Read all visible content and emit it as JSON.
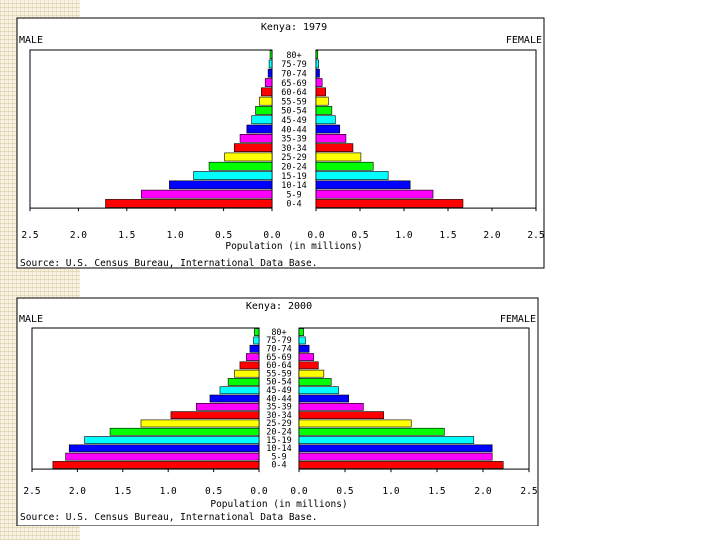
{
  "colors": {
    "page_background": "#ffffff",
    "side_strip": "#f7f2e2",
    "bar_palette": [
      "#ff0000",
      "#ff00ff",
      "#0000ff",
      "#00ffff",
      "#00ff00",
      "#ffff00"
    ]
  },
  "chart_data": [
    {
      "type": "bar",
      "orientation": "population-pyramid",
      "title": "Kenya: 1979",
      "left_label": "MALE",
      "right_label": "FEMALE",
      "xlabel": "Population (in millions)",
      "source": "Source: U.S. Census Bureau, International Data Base.",
      "xlim": [
        0,
        2.5
      ],
      "x_ticks": [
        "2.5",
        "2.0",
        "1.5",
        "1.0",
        "0.5",
        "0.0",
        "0.0",
        "0.5",
        "1.0",
        "1.5",
        "2.0",
        "2.5"
      ],
      "grid": false,
      "categories": [
        "0-4",
        "5-9",
        "10-14",
        "15-19",
        "20-24",
        "25-29",
        "30-34",
        "35-39",
        "40-44",
        "45-49",
        "50-54",
        "55-59",
        "60-64",
        "65-69",
        "70-74",
        "75-79",
        "80+"
      ],
      "series": [
        {
          "name": "MALE",
          "values": [
            1.72,
            1.35,
            1.06,
            0.81,
            0.65,
            0.49,
            0.39,
            0.33,
            0.26,
            0.21,
            0.17,
            0.13,
            0.11,
            0.07,
            0.04,
            0.03,
            0.02
          ]
        },
        {
          "name": "FEMALE",
          "values": [
            1.67,
            1.33,
            1.07,
            0.82,
            0.65,
            0.51,
            0.42,
            0.34,
            0.27,
            0.22,
            0.18,
            0.14,
            0.11,
            0.07,
            0.04,
            0.03,
            0.02
          ]
        }
      ]
    },
    {
      "type": "bar",
      "orientation": "population-pyramid",
      "title": "Kenya: 2000",
      "left_label": "MALE",
      "right_label": "FEMALE",
      "xlabel": "Population (in millions)",
      "source": "Source: U.S. Census Bureau, International Data Base.",
      "xlim": [
        0,
        2.5
      ],
      "x_ticks": [
        "2.5",
        "2.0",
        "1.5",
        "1.0",
        "0.5",
        "0.0",
        "0.0",
        "0.5",
        "1.0",
        "1.5",
        "2.0",
        "2.5"
      ],
      "grid": false,
      "categories": [
        "0-4",
        "5-9",
        "10-14",
        "15-19",
        "20-24",
        "25-29",
        "30-34",
        "35-39",
        "40-44",
        "45-49",
        "50-54",
        "55-59",
        "60-64",
        "65-69",
        "70-74",
        "75-79",
        "80+"
      ],
      "series": [
        {
          "name": "MALE",
          "values": [
            2.27,
            2.13,
            2.09,
            1.92,
            1.64,
            1.3,
            0.97,
            0.69,
            0.54,
            0.43,
            0.34,
            0.27,
            0.21,
            0.14,
            0.1,
            0.06,
            0.05
          ]
        },
        {
          "name": "FEMALE",
          "values": [
            2.22,
            2.1,
            2.1,
            1.9,
            1.58,
            1.22,
            0.92,
            0.7,
            0.54,
            0.43,
            0.35,
            0.27,
            0.21,
            0.16,
            0.11,
            0.07,
            0.05
          ]
        }
      ]
    }
  ]
}
